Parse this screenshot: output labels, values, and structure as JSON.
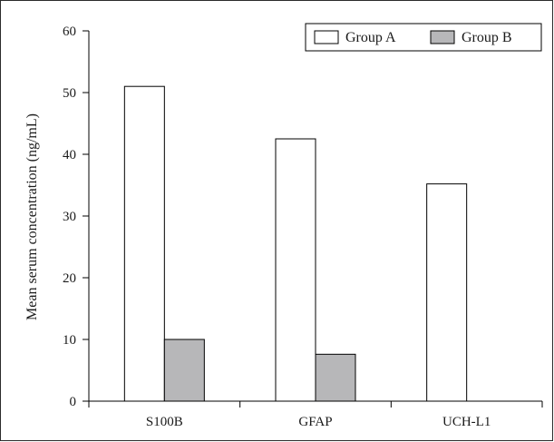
{
  "chart_data": {
    "type": "bar",
    "categories": [
      "S100B",
      "GFAP",
      "UCH-L1"
    ],
    "series": [
      {
        "name": "Group A",
        "values": [
          51,
          42.5,
          35.2
        ],
        "color": "#ffffff"
      },
      {
        "name": "Group B",
        "values": [
          10,
          7.6,
          0
        ],
        "color": "#b7b7b9"
      }
    ],
    "title": "",
    "xlabel": "",
    "ylabel": "Mean serum concentration (ng/mL)",
    "ylim": [
      0,
      60
    ],
    "yticks": [
      0,
      10,
      20,
      30,
      40,
      50,
      60
    ],
    "grid": false,
    "legend_position": "top-right",
    "colors": {
      "bar_outline": "#000000",
      "axis": "#000000"
    }
  }
}
